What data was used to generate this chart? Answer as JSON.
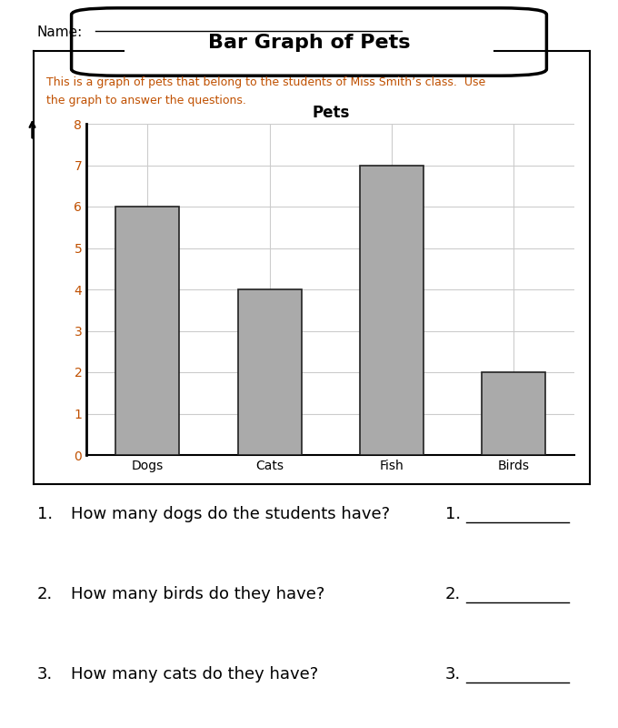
{
  "title": "Bar Graph of Pets",
  "chart_title": "Pets",
  "categories": [
    "Dogs",
    "Cats",
    "Fish",
    "Birds"
  ],
  "values": [
    6,
    4,
    7,
    2
  ],
  "bar_color": "#aaaaaa",
  "bar_edgecolor": "#222222",
  "ylim": [
    0,
    8
  ],
  "yticks": [
    0,
    1,
    2,
    3,
    4,
    5,
    6,
    7,
    8
  ],
  "name_label": "Name:",
  "description_line1": "This is a graph of pets that belong to the students of Miss Smith’s class.  Use",
  "description_line2": "the graph to answer the questions.",
  "description_color": "#c05000",
  "questions": [
    "How many dogs do the students have?",
    "How many birds do they have?",
    "How many cats do they have?"
  ],
  "question_numbers_left": [
    "1.",
    "2.",
    "3."
  ],
  "question_numbers_right": [
    "1.",
    "2.",
    "3."
  ],
  "grid_color": "#cccccc",
  "tick_color": "#c05000",
  "spine_color": "#000000"
}
